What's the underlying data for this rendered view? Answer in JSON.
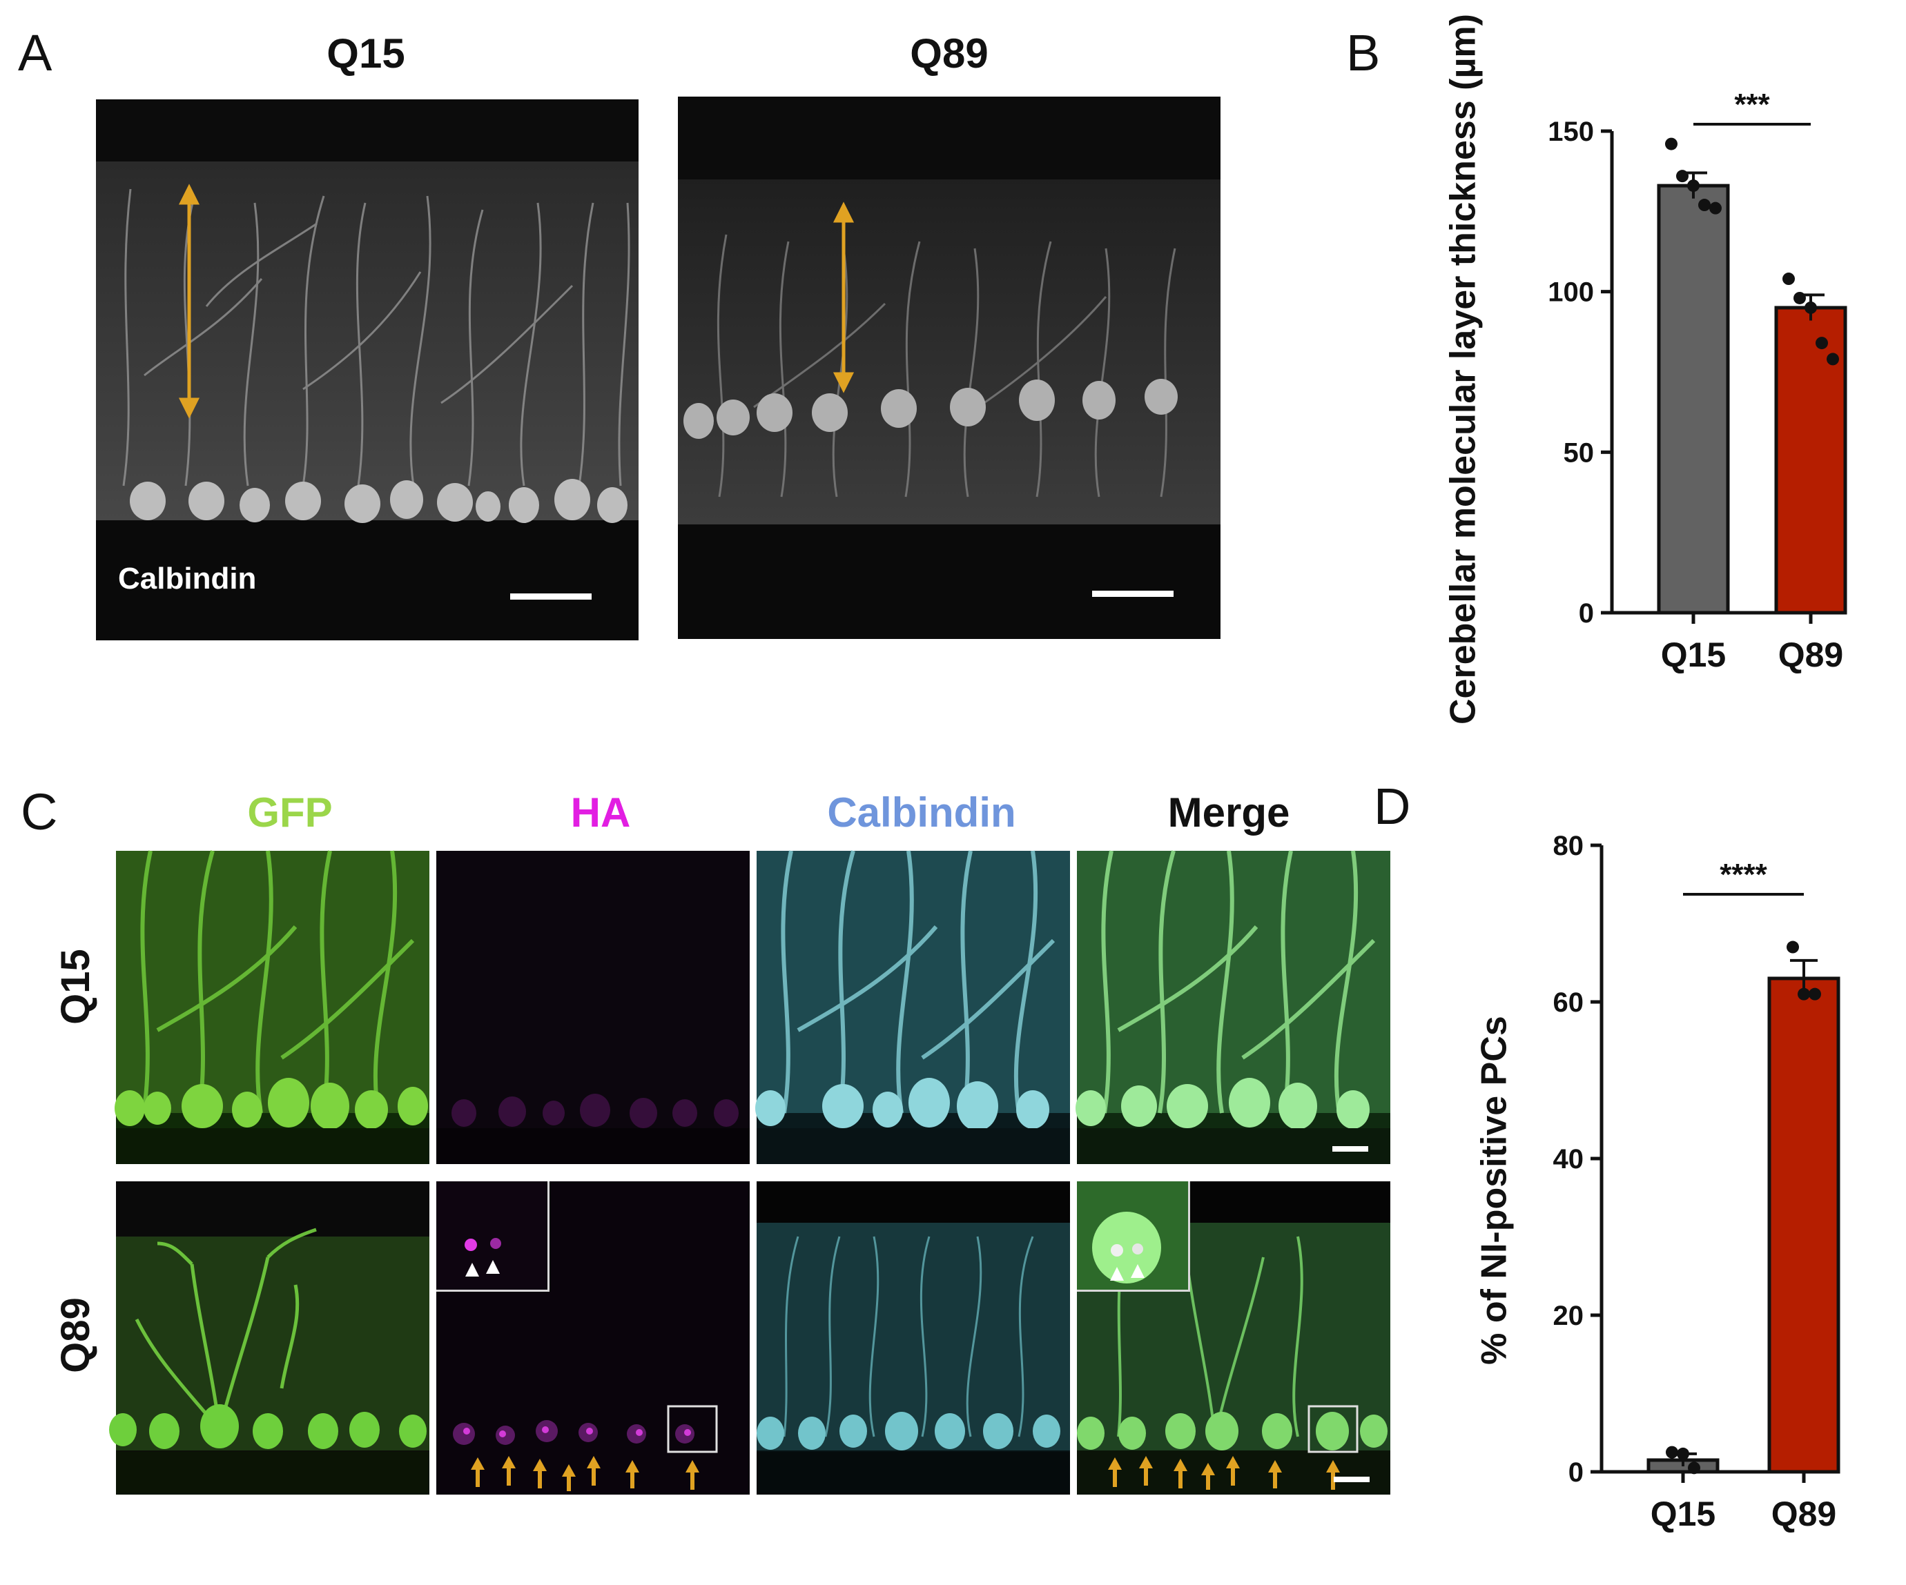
{
  "panels": {
    "A": {
      "letter": "A",
      "columns": [
        "Q15",
        "Q89"
      ],
      "stain_label": "Calbindin"
    },
    "B": {
      "letter": "B"
    },
    "C": {
      "letter": "C",
      "channels": [
        {
          "label": "GFP",
          "color": "#9bd64a"
        },
        {
          "label": "HA",
          "color": "#e21ee2"
        },
        {
          "label": "Calbindin",
          "color": "#6f95dc"
        },
        {
          "label": "Merge",
          "color": "#111111"
        }
      ],
      "rows": [
        "Q15",
        "Q89"
      ]
    },
    "D": {
      "letter": "D"
    }
  },
  "chart_data": [
    {
      "panel": "B",
      "type": "bar",
      "ylabel": "Cerebellar molecular layer thickness (µm)",
      "categories": [
        "Q15",
        "Q89"
      ],
      "values": [
        133,
        95
      ],
      "errors": [
        4,
        4
      ],
      "points": [
        [
          146,
          136,
          133,
          127,
          126
        ],
        [
          104,
          98,
          95,
          84,
          79
        ]
      ],
      "bar_colors": [
        "#626262",
        "#b51e00"
      ],
      "ylim": [
        0,
        150
      ],
      "yticks": [
        0,
        50,
        100,
        150
      ],
      "significance": "***"
    },
    {
      "panel": "D",
      "type": "bar",
      "ylabel": "% of NI-positive PCs",
      "categories": [
        "Q15",
        "Q89"
      ],
      "values": [
        1.5,
        63
      ],
      "errors": [
        0.8,
        2.3
      ],
      "points": [
        [
          2.5,
          2.3,
          0.5
        ],
        [
          67,
          61,
          61
        ]
      ],
      "bar_colors": [
        "#626262",
        "#b51e00"
      ],
      "ylim": [
        0,
        80
      ],
      "yticks": [
        0,
        20,
        40,
        60,
        80
      ],
      "significance": "****"
    }
  ]
}
